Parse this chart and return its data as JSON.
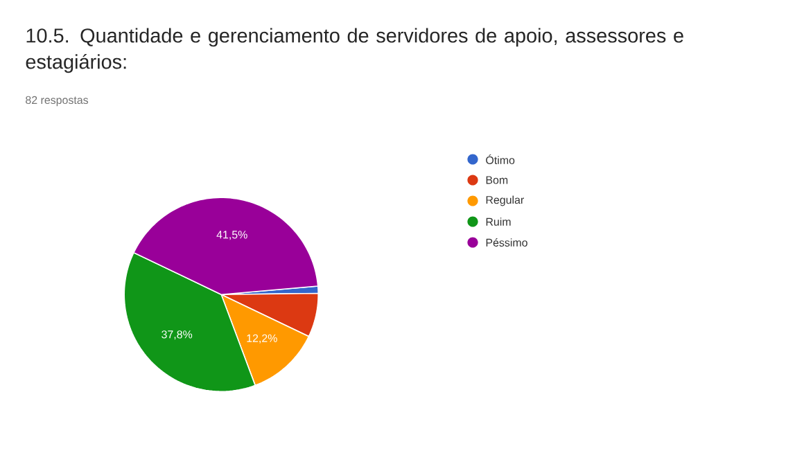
{
  "chart_data": {
    "type": "pie",
    "title": "10.5. Quantidade e gerenciamento de servidores de apoio, assessores e estagiários:",
    "subtitle": "82 respostas",
    "categories": [
      "Ótimo",
      "Bom",
      "Regular",
      "Ruim",
      "Péssimo"
    ],
    "values": [
      1.2,
      7.3,
      12.2,
      37.8,
      41.5
    ],
    "colors": [
      "#3366cc",
      "#dc3912",
      "#ff9900",
      "#109618",
      "#990099"
    ],
    "value_labels": [
      null,
      null,
      "12,2%",
      "37,8%",
      "41,5%"
    ],
    "legend": "right"
  }
}
